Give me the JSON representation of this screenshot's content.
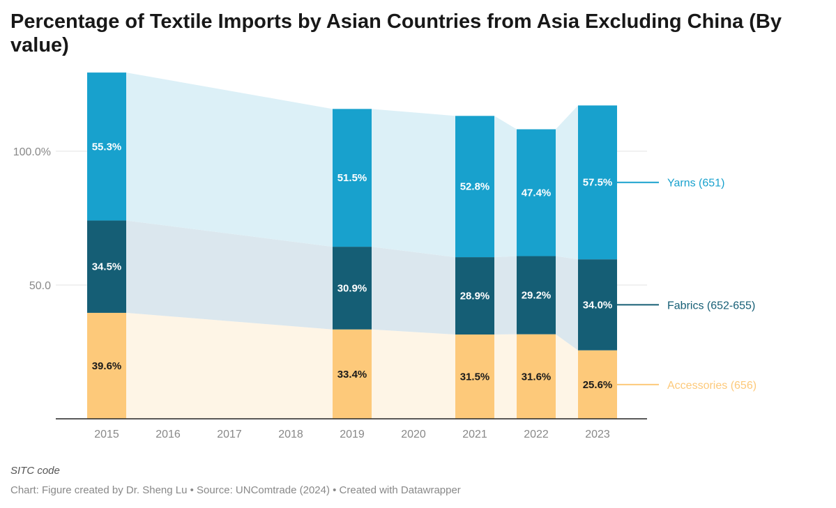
{
  "chart_data": {
    "type": "bar",
    "stacked": true,
    "title": "Percentage of Textile Imports by Asian Countries from Asia Excluding China (By value)",
    "note": "SITC code",
    "footer": "Chart: Figure created by Dr. Sheng Lu • Source: UNComtrade (2024) • Created with Datawrapper",
    "categories": [
      "2015",
      "2016",
      "2017",
      "2018",
      "2019",
      "2020",
      "2021",
      "2022",
      "2023"
    ],
    "y_ticks": [
      {
        "value": 50,
        "label": "50.0"
      },
      {
        "value": 100,
        "label": "100.0%"
      }
    ],
    "ylim": [
      0,
      130
    ],
    "grid": true,
    "legend": "right, labels at series ends",
    "series": [
      {
        "name": "Accessories (656)",
        "color": "#fdc97a",
        "area_color": "#fef5e6",
        "label_color": "#1a1a1a",
        "values": [
          39.6,
          null,
          null,
          null,
          33.4,
          null,
          31.5,
          31.6,
          25.6
        ]
      },
      {
        "name": "Fabrics (652-655)",
        "color": "#155e75",
        "area_color": "#dbe7ee",
        "label_color": "#ffffff",
        "values": [
          34.5,
          null,
          null,
          null,
          30.9,
          null,
          28.9,
          29.2,
          34.0
        ]
      },
      {
        "name": "Yarns (651)",
        "color": "#18a1cd",
        "area_color": "#dcf0f7",
        "label_color": "#ffffff",
        "values": [
          55.3,
          null,
          null,
          null,
          51.5,
          null,
          52.8,
          47.4,
          57.5
        ]
      }
    ]
  }
}
